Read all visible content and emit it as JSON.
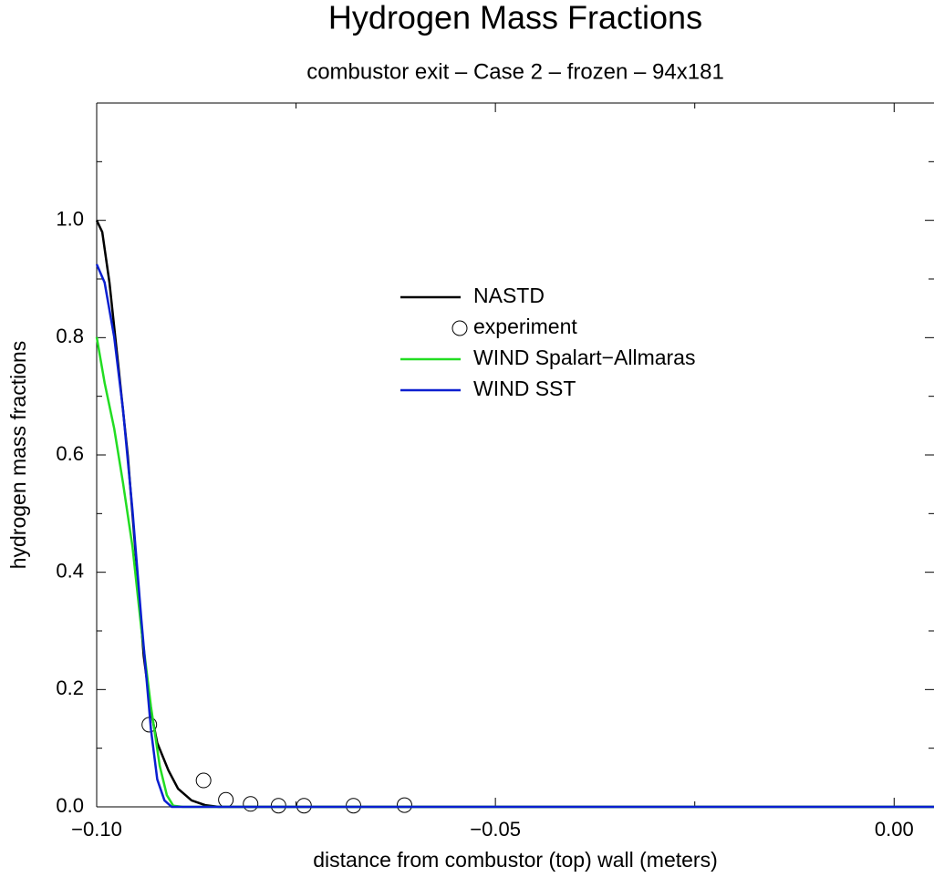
{
  "chart_data": {
    "type": "line",
    "title": "Hydrogen Mass Fractions",
    "subtitle": "combustor exit – Case 2 – frozen – 94x181",
    "xlabel": "distance from combustor (top) wall (meters)",
    "ylabel": "hydrogen mass fractions",
    "xlim": [
      -0.1,
      0.005
    ],
    "ylim": [
      0,
      1.2
    ],
    "xticks": [
      {
        "value": -0.1,
        "label": "−0.10"
      },
      {
        "value": -0.05,
        "label": "−0.05"
      },
      {
        "value": 0,
        "label": "0.00"
      }
    ],
    "xminorticks": [
      -0.075,
      -0.025
    ],
    "yticks": [
      {
        "value": 0,
        "label": "0.0"
      },
      {
        "value": 0.2,
        "label": "0.2"
      },
      {
        "value": 0.4,
        "label": "0.4"
      },
      {
        "value": 0.6,
        "label": "0.6"
      },
      {
        "value": 0.8,
        "label": "0.8"
      },
      {
        "value": 1,
        "label": "1.0"
      }
    ],
    "yminorticks": [
      0.1,
      0.3,
      0.5,
      0.7,
      0.9,
      1.1
    ],
    "series": [
      {
        "name": "NASTD",
        "color": "#000000",
        "mode": "lines",
        "x": [
          -0.1,
          -0.0993,
          -0.0984,
          -0.0973,
          -0.0961,
          -0.095,
          -0.0941,
          -0.0932,
          -0.0924,
          -0.091,
          -0.0898,
          -0.0881,
          -0.0864,
          -0.0847,
          0.005
        ],
        "values": [
          1.0,
          0.98,
          0.894,
          0.754,
          0.599,
          0.412,
          0.257,
          0.163,
          0.109,
          0.062,
          0.031,
          0.011,
          0.003,
          0,
          0
        ]
      },
      {
        "name": "experiment",
        "color": "#000000",
        "mode": "markers",
        "x": [
          -0.0934,
          -0.0866,
          -0.0838,
          -0.0807,
          -0.0772,
          -0.074,
          -0.0678,
          -0.0614
        ],
        "values": [
          0.14,
          0.045,
          0.012,
          0.005,
          0.002,
          0.002,
          0.002,
          0.003
        ]
      },
      {
        "name": "WIND Spalart−Allmaras",
        "color": "#22dd22",
        "mode": "lines",
        "x": [
          -0.1,
          -0.099,
          -0.0978,
          -0.0967,
          -0.0955,
          -0.0944,
          -0.0932,
          -0.0921,
          -0.0912,
          -0.0904,
          -0.0892,
          0.005
        ],
        "values": [
          0.801,
          0.723,
          0.645,
          0.552,
          0.443,
          0.303,
          0.171,
          0.07,
          0.02,
          0.002,
          0,
          0
        ]
      },
      {
        "name": "WIND SST",
        "color": "#0a1fd0",
        "mode": "lines",
        "x": [
          -0.1,
          -0.099,
          -0.0978,
          -0.0967,
          -0.0955,
          -0.0944,
          -0.0932,
          -0.0924,
          -0.0915,
          -0.0906,
          0.005
        ],
        "values": [
          0.925,
          0.894,
          0.801,
          0.677,
          0.505,
          0.319,
          0.132,
          0.047,
          0.011,
          0,
          0
        ]
      }
    ]
  }
}
